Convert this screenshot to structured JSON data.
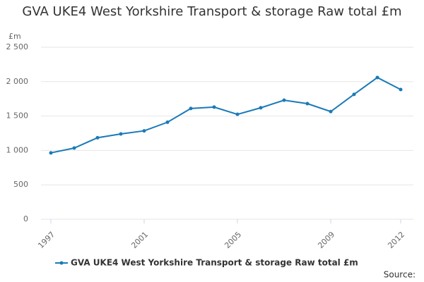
{
  "chart_data": {
    "type": "line",
    "title": "GVA UKE4 West Yorkshire Transport & storage Raw total £m",
    "y_label": "£m",
    "source": "Source:",
    "x": [
      1997,
      1998,
      1999,
      2000,
      2001,
      2002,
      2003,
      2004,
      2005,
      2006,
      2007,
      2008,
      2009,
      2010,
      2011,
      2012
    ],
    "series": [
      {
        "name": "GVA UKE4 West Yorkshire Transport & storage Raw total £m",
        "color": "#1a7ab8",
        "values": [
          965,
          1035,
          1185,
          1240,
          1285,
          1410,
          1610,
          1630,
          1525,
          1620,
          1730,
          1680,
          1565,
          1815,
          2060,
          1885
        ]
      }
    ],
    "xlim": [
      1997,
      2012
    ],
    "xticks": [
      1997,
      2001,
      2005,
      2009,
      2012
    ],
    "ylim": [
      0,
      2500
    ],
    "yticks": [
      0,
      500,
      {
        "value": 1000,
        "label": "1 000"
      },
      {
        "value": 1500,
        "label": "1 500"
      },
      {
        "value": 2000,
        "label": "2 000"
      },
      {
        "value": 2500,
        "label": "2 500"
      }
    ],
    "grid": true
  }
}
